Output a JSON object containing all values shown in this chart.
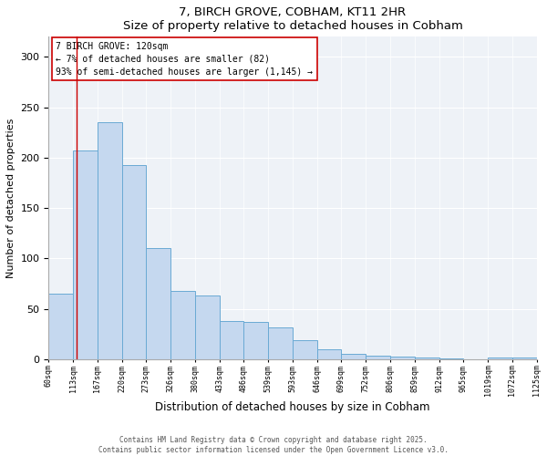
{
  "title": "7, BIRCH GROVE, COBHAM, KT11 2HR",
  "subtitle": "Size of property relative to detached houses in Cobham",
  "xlabel": "Distribution of detached houses by size in Cobham",
  "ylabel": "Number of detached properties",
  "footnote1": "Contains HM Land Registry data © Crown copyright and database right 2025.",
  "footnote2": "Contains public sector information licensed under the Open Government Licence v3.0.",
  "annotation_line1": "7 BIRCH GROVE: 120sqm",
  "annotation_line2": "← 7% of detached houses are smaller (82)",
  "annotation_line3": "93% of semi-detached houses are larger (1,145) →",
  "bar_color": "#c5d8ef",
  "bar_edge_color": "#6aaad4",
  "annotation_line_color": "#cc0000",
  "categories": [
    "60sqm",
    "113sqm",
    "167sqm",
    "220sqm",
    "273sqm",
    "326sqm",
    "380sqm",
    "433sqm",
    "486sqm",
    "539sqm",
    "593sqm",
    "646sqm",
    "699sqm",
    "752sqm",
    "806sqm",
    "859sqm",
    "912sqm",
    "965sqm",
    "1019sqm",
    "1072sqm",
    "1125sqm"
  ],
  "values": [
    65,
    207,
    235,
    193,
    110,
    68,
    63,
    38,
    37,
    32,
    19,
    10,
    5,
    4,
    3,
    2,
    1,
    0,
    2,
    2
  ],
  "ylim": [
    0,
    320
  ],
  "yticks": [
    0,
    50,
    100,
    150,
    200,
    250,
    300
  ],
  "bg_color": "#eef2f7"
}
